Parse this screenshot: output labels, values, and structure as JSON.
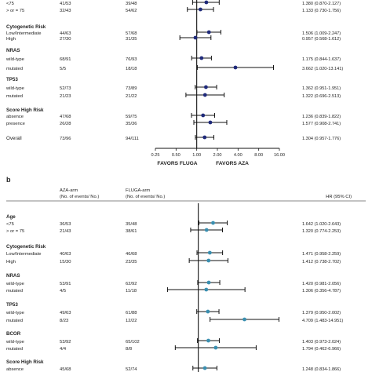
{
  "chart_data": [
    {
      "type": "forest",
      "panel": "a",
      "xlabel_left": "FAVORS FLUGA",
      "xlabel_right": "FAVORS AZA",
      "log_scale": true,
      "xlim": [
        0.25,
        16
      ],
      "xticks": [
        "0.25",
        "0.50",
        "1.00",
        "2.00",
        "4.00",
        "8.00",
        "16.00"
      ],
      "xtick_values": [
        0.25,
        0.5,
        1,
        2,
        4,
        8,
        16
      ],
      "reference_line": 1,
      "rows": [
        {
          "label": "<75",
          "arm1": "41/53",
          "arm2": "39/48",
          "hr": 1.38,
          "lo": 0.87,
          "hi": 2.127,
          "text": "1.380 (0.870-2.127)"
        },
        {
          "label": "> or = 75",
          "arm1": "32/43",
          "arm2": "54/62",
          "hr": 1.133,
          "lo": 0.73,
          "hi": 1.756,
          "text": "1.133 (0.730-1.756)"
        },
        {
          "group": "Cytogenetic Risk"
        },
        {
          "label": "Low/Intermediate",
          "arm1": "44/63",
          "arm2": "57/68",
          "hr": 1.506,
          "lo": 1.009,
          "hi": 2.247,
          "text": "1.506 (1.009-2.247)"
        },
        {
          "label": "High",
          "arm1": "27/30",
          "arm2": "31/35",
          "hr": 0.957,
          "lo": 0.568,
          "hi": 1.612,
          "text": "0.957 (0.568-1.612)"
        },
        {
          "group": "NRAS"
        },
        {
          "label": "wild-type",
          "arm1": "68/91",
          "arm2": "76/93",
          "hr": 1.175,
          "lo": 0.844,
          "hi": 1.637,
          "text": "1.175 (0.844-1.637)"
        },
        {
          "label": "mutated",
          "arm1": "5/5",
          "arm2": "18/18",
          "hr": 3.662,
          "lo": 1.02,
          "hi": 13.141,
          "text": "3.662 (1.020-13.141)"
        },
        {
          "group": "TP53"
        },
        {
          "label": "wild-type",
          "arm1": "52/73",
          "arm2": "73/89",
          "hr": 1.362,
          "lo": 0.951,
          "hi": 1.951,
          "text": "1.362 (0.951-1.951)"
        },
        {
          "label": "mutated",
          "arm1": "21/23",
          "arm2": "21/22",
          "hr": 1.322,
          "lo": 0.696,
          "hi": 2.513,
          "text": "1.322 (0.696-2.513)"
        },
        {
          "group": "Score High Risk"
        },
        {
          "label": "absence",
          "arm1": "47/68",
          "arm2": "59/75",
          "hr": 1.236,
          "lo": 0.839,
          "hi": 1.822,
          "text": "1.236 (0.839-1.822)"
        },
        {
          "label": "presence",
          "arm1": "26/28",
          "arm2": "35/36",
          "hr": 1.577,
          "lo": 0.908,
          "hi": 2.741,
          "text": "1.577 (0.908-2.741)"
        },
        {
          "group": "Overall",
          "arm1": "73/96",
          "arm2": "94/111",
          "hr": 1.304,
          "lo": 0.957,
          "hi": 1.776,
          "text": "1.304 (0.957-1.776)"
        }
      ]
    },
    {
      "type": "forest",
      "panel": "b",
      "panel_label": "b",
      "col1_header": "AZA-arm",
      "col1_sub": "(No. of events/ No.)",
      "col2_header": "FLUGA-arm",
      "col2_sub": "(No. of events/ No.)",
      "hr_header": "HR (95% CI)",
      "log_scale": true,
      "xlim": [
        0.25,
        16
      ],
      "reference_line": 1,
      "rows": [
        {
          "group": "Age"
        },
        {
          "label": "<75",
          "arm1": "36/53",
          "arm2": "35/48",
          "hr": 1.642,
          "lo": 1.02,
          "hi": 2.643,
          "text": "1.642 (1.020-2.643)"
        },
        {
          "label": "> or = 75",
          "arm1": "21/43",
          "arm2": "38/61",
          "hr": 1.32,
          "lo": 0.774,
          "hi": 2.253,
          "text": "1.320 (0.774-2.253)"
        },
        {
          "group": "Cytogenetic Risk"
        },
        {
          "label": "Low/Intermediate",
          "arm1": "40/63",
          "arm2": "46/68",
          "hr": 1.471,
          "lo": 0.958,
          "hi": 2.259,
          "text": "1.471 (0.958-2.259)"
        },
        {
          "label": "High",
          "arm1": "15/30",
          "arm2": "23/35",
          "hr": 1.412,
          "lo": 0.738,
          "hi": 2.702,
          "text": "1.412 (0.738-2.702)"
        },
        {
          "group": "NRAS"
        },
        {
          "label": "wild-type",
          "arm1": "53/91",
          "arm2": "62/92",
          "hr": 1.42,
          "lo": 0.981,
          "hi": 2.056,
          "text": "1.420 (0.981-2.056)"
        },
        {
          "label": "mutated",
          "arm1": "4/5",
          "arm2": "11/18",
          "hr": 1.306,
          "lo": 0.356,
          "hi": 4.787,
          "text": "1.306 (0.356-4.787)"
        },
        {
          "group": "TP53"
        },
        {
          "label": "wild-type",
          "arm1": "49/63",
          "arm2": "61/88",
          "hr": 1.379,
          "lo": 0.95,
          "hi": 2.002,
          "text": "1.379 (0.950-2.002)"
        },
        {
          "label": "mutated",
          "arm1": "8/23",
          "arm2": "12/22",
          "hr": 4.709,
          "lo": 1.483,
          "hi": 14.951,
          "text": "4.709 (1.483-14.951)"
        },
        {
          "group": "BCOR"
        },
        {
          "label": "wild-type",
          "arm1": "53/92",
          "arm2": "65/102",
          "hr": 1.403,
          "lo": 0.973,
          "hi": 2.024,
          "text": "1.403 (0.973-2.024)"
        },
        {
          "label": "mutated",
          "arm1": "4/4",
          "arm2": "8/8",
          "hr": 1.794,
          "lo": 0.462,
          "hi": 6.966,
          "text": "1.794 (0.462-6.966)"
        },
        {
          "group": "Score High Risk"
        },
        {
          "label": "absence",
          "arm1": "45/68",
          "arm2": "52/74",
          "hr": 1.248,
          "lo": 0.834,
          "hi": 1.866,
          "text": "1.248 (0.834-1.866)"
        }
      ]
    }
  ],
  "colors": {
    "marker_a": "#1f2a7a",
    "marker_b": "#3a8fb0",
    "line": "#111111",
    "text": "#222222"
  }
}
